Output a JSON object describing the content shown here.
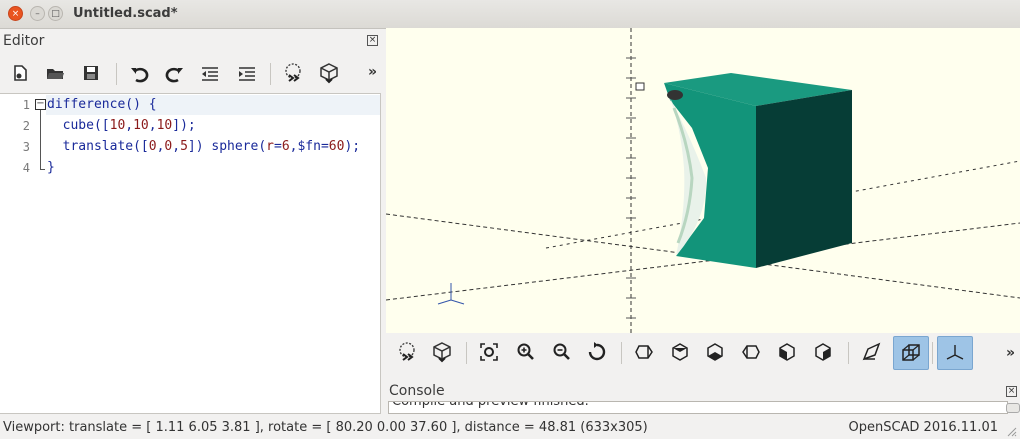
{
  "window": {
    "title": "Untitled.scad*",
    "close": "×",
    "minimize": "–",
    "maximize": "□"
  },
  "editor": {
    "label": "Editor",
    "close_glyph": "×",
    "toolbar": [
      "new-file-icon",
      "open-file-icon",
      "save-icon",
      "undo-icon",
      "redo-icon",
      "unindent-icon",
      "indent-icon",
      "preview-icon",
      "render-icon"
    ],
    "more": "»",
    "line_numbers": [
      "1",
      "2",
      "3",
      "4"
    ],
    "fold_marker": "−",
    "code": [
      [
        {
          "t": "difference",
          "c": "kw"
        },
        {
          "t": "()",
          "c": "kw"
        },
        {
          "t": " {",
          "c": "kw"
        }
      ],
      [
        {
          "t": "  cube",
          "c": "kw"
        },
        {
          "t": "([",
          "c": "kw"
        },
        {
          "t": "10",
          "c": "num"
        },
        {
          "t": ",",
          "c": "kw"
        },
        {
          "t": "10",
          "c": "num"
        },
        {
          "t": ",",
          "c": "kw"
        },
        {
          "t": "10",
          "c": "num"
        },
        {
          "t": "]);",
          "c": "kw"
        }
      ],
      [
        {
          "t": "  translate",
          "c": "kw"
        },
        {
          "t": "([",
          "c": "kw"
        },
        {
          "t": "0",
          "c": "num"
        },
        {
          "t": ",",
          "c": "kw"
        },
        {
          "t": "0",
          "c": "num"
        },
        {
          "t": ",",
          "c": "kw"
        },
        {
          "t": "5",
          "c": "num"
        },
        {
          "t": "]) sphere(",
          "c": "kw"
        },
        {
          "t": "r",
          "c": "num"
        },
        {
          "t": "=",
          "c": "kw"
        },
        {
          "t": "6",
          "c": "num"
        },
        {
          "t": ",$fn=",
          "c": "kw"
        },
        {
          "t": "60",
          "c": "num"
        },
        {
          "t": ");",
          "c": "kw"
        }
      ],
      [
        {
          "t": "}",
          "c": "kw"
        }
      ]
    ]
  },
  "view_toolbar": {
    "icons": [
      "preview-icon",
      "render-icon",
      "view-all-icon",
      "zoom-in-icon",
      "zoom-out-icon",
      "reset-view-icon",
      "view-right-icon",
      "view-top-icon",
      "view-bottom-icon",
      "view-left-icon",
      "view-front-icon",
      "view-back-icon",
      "diagonal-view-icon",
      "perspective-icon",
      "show-axes-icon"
    ],
    "more": "»"
  },
  "console": {
    "label": "Console",
    "close_glyph": "×",
    "text": "Compile and preview finished."
  },
  "status": {
    "left": "Viewport: translate = [ 1.11 6.05 3.81 ], rotate = [ 80.20 0.00 37.60 ], distance = 48.81 (633x305)",
    "right": "OpenSCAD 2016.11.01"
  },
  "colors": {
    "face_top": "#1a9a80",
    "face_front": "#12947a",
    "face_right": "#063d36",
    "viewport_bg": "#ffffee",
    "pressed": "#9ec4e6"
  }
}
